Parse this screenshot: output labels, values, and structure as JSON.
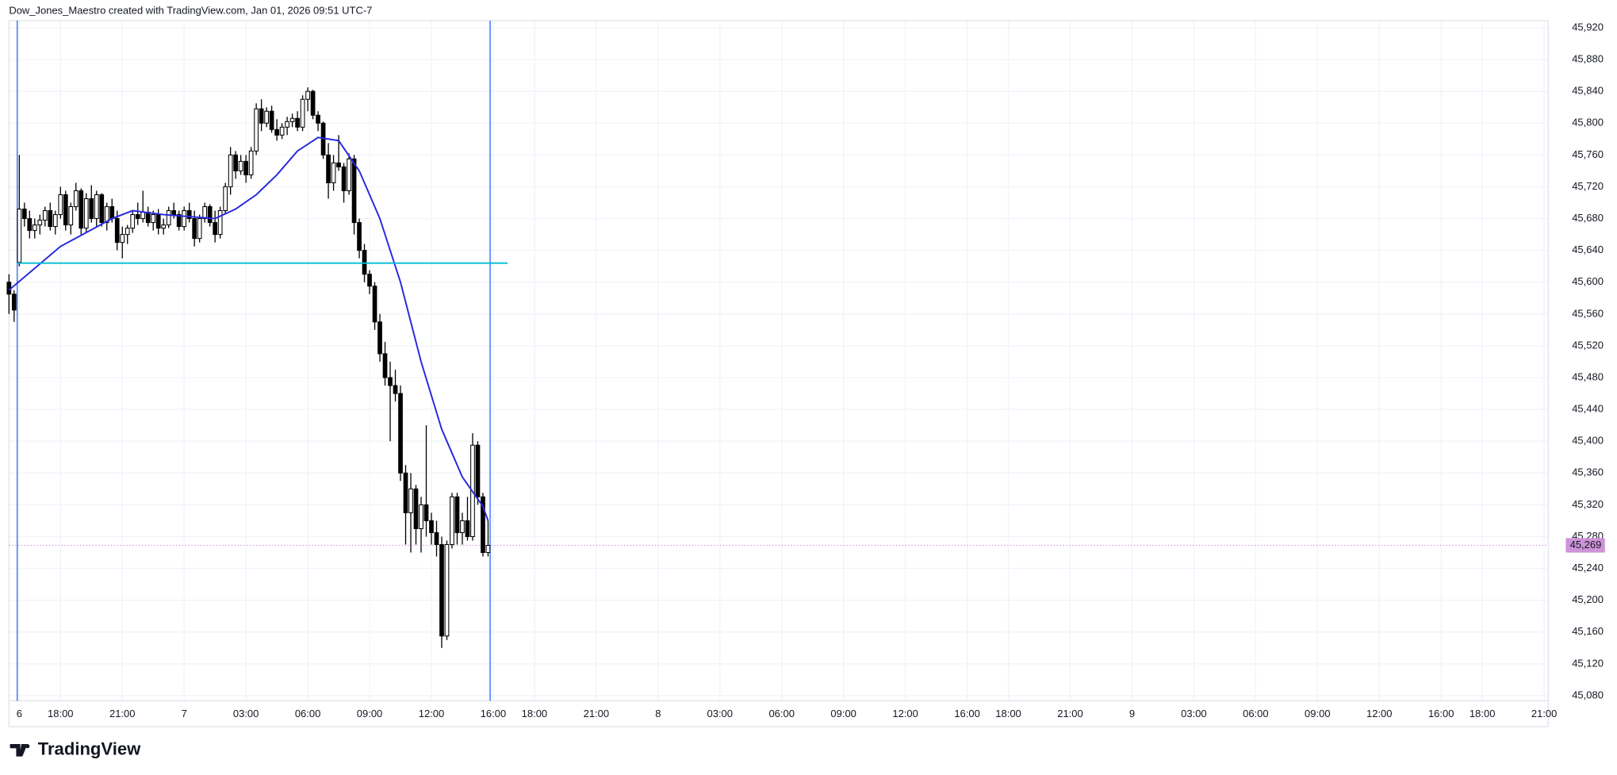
{
  "header": "Dow_Jones_Maestro created with TradingView.com, Jan 01, 2026 09:51 UTC-7",
  "footer": "TradingView",
  "chart_data": {
    "type": "candlestick",
    "open": [
      45600,
      45585,
      45625,
      45692,
      45680,
      45665,
      45672,
      45678,
      45690,
      45670,
      45685,
      45710,
      45672,
      45695,
      45715,
      45668,
      45705,
      45680,
      45710,
      45675,
      45695,
      45680,
      45650,
      45660,
      45668,
      45685,
      45680,
      45688,
      45675,
      45685,
      45668,
      45672,
      45690,
      45685,
      45670,
      45690,
      45680,
      45655,
      45680,
      45695,
      45675,
      45660,
      45690,
      45720,
      45760,
      45740,
      45752,
      45735,
      45765,
      45818,
      45800,
      45815,
      45792,
      45785,
      45795,
      45802,
      45806,
      45795,
      45830,
      45840,
      45810,
      45800,
      45760,
      45725,
      45750,
      45745,
      45715,
      45755,
      45675,
      45640,
      45610,
      45595,
      45550,
      45510,
      45480,
      45470,
      45460,
      45360,
      45310,
      45340,
      45290,
      45320,
      45300,
      45285,
      45270,
      45155,
      45270,
      45330,
      45285,
      45300,
      45280,
      45395,
      45330,
      45260
    ],
    "high": [
      45610,
      45590,
      45760,
      45700,
      45690,
      45680,
      45685,
      45695,
      45700,
      45690,
      45720,
      45715,
      45700,
      45725,
      45718,
      45712,
      45722,
      45715,
      45712,
      45700,
      45705,
      45690,
      45670,
      45672,
      45690,
      45700,
      45715,
      45695,
      45690,
      45692,
      45680,
      45695,
      45700,
      45690,
      45695,
      45700,
      45690,
      45685,
      45700,
      45698,
      45690,
      45695,
      45725,
      45770,
      45765,
      45760,
      45760,
      45770,
      45825,
      45830,
      45820,
      45822,
      45805,
      45800,
      45808,
      45812,
      45815,
      45835,
      45845,
      45842,
      45815,
      45802,
      45775,
      45760,
      45785,
      45750,
      45762,
      45760,
      45680,
      45648,
      45615,
      45600,
      45560,
      45525,
      45500,
      45490,
      45470,
      45370,
      45360,
      45345,
      45330,
      45420,
      45310,
      45300,
      45280,
      45275,
      45335,
      45335,
      45310,
      45330,
      45410,
      45400,
      45335,
      45300
    ],
    "low": [
      45560,
      45550,
      45620,
      45670,
      45655,
      45655,
      45660,
      45670,
      45665,
      45660,
      45680,
      45665,
      45660,
      45690,
      45660,
      45662,
      45675,
      45670,
      45670,
      45665,
      45675,
      45640,
      45630,
      45648,
      45662,
      45672,
      45675,
      45670,
      45665,
      45660,
      45660,
      45668,
      45680,
      45665,
      45665,
      45675,
      45645,
      45650,
      45675,
      45670,
      45650,
      45655,
      45685,
      45710,
      45730,
      45735,
      45725,
      45730,
      45760,
      45790,
      45795,
      45788,
      45778,
      45780,
      45785,
      45795,
      45790,
      45790,
      45815,
      45805,
      45790,
      45755,
      45705,
      45715,
      45740,
      45700,
      45710,
      45660,
      45630,
      45600,
      45585,
      45540,
      45500,
      45470,
      45400,
      45450,
      45350,
      45270,
      45260,
      45270,
      45260,
      45280,
      45270,
      45255,
      45140,
      45150,
      45265,
      45270,
      45270,
      45275,
      45275,
      45320,
      45255,
      45255
    ],
    "close": [
      45585,
      45565,
      45692,
      45680,
      45665,
      45672,
      45678,
      45690,
      45670,
      45685,
      45710,
      45672,
      45695,
      45715,
      45668,
      45705,
      45680,
      45710,
      45675,
      45695,
      45680,
      45650,
      45660,
      45668,
      45685,
      45680,
      45688,
      45675,
      45685,
      45668,
      45672,
      45690,
      45685,
      45670,
      45690,
      45680,
      45655,
      45680,
      45695,
      45675,
      45660,
      45690,
      45720,
      45760,
      45740,
      45752,
      45735,
      45765,
      45818,
      45800,
      45815,
      45792,
      45785,
      45795,
      45802,
      45806,
      45795,
      45830,
      45840,
      45810,
      45800,
      45760,
      45725,
      45750,
      45745,
      45715,
      45755,
      45675,
      45640,
      45610,
      45595,
      45550,
      45510,
      45480,
      45470,
      45460,
      45360,
      45310,
      45340,
      45290,
      45320,
      45300,
      45285,
      45270,
      45155,
      45270,
      45330,
      45285,
      45300,
      45280,
      45395,
      45330,
      45260,
      45269
    ],
    "up_color": "#ffffff",
    "down_color": "#000000",
    "wick_color": "#000000",
    "moving_average": {
      "color": "#2727e0",
      "x": [
        0,
        10,
        20,
        24,
        30,
        36,
        40,
        44,
        48,
        52,
        56,
        60,
        64,
        68,
        72,
        76,
        80,
        84,
        88,
        92,
        93
      ],
      "values": [
        45590,
        45645,
        45680,
        45690,
        45685,
        45682,
        45680,
        45692,
        45710,
        45735,
        45765,
        45782,
        45778,
        45740,
        45680,
        45600,
        45500,
        45415,
        45355,
        45318,
        45300
      ]
    },
    "horizontal_line": {
      "value": 45624,
      "x_range": [
        1.6,
        96.8
      ],
      "color": "#00bcd4"
    },
    "vertical_lines": {
      "x": [
        1.6,
        93.4
      ],
      "color": "#2962ff"
    },
    "last_price": {
      "value": 45269,
      "label": "45,269",
      "color": "#ce93d8"
    },
    "xlim": [
      0,
      298.8
    ],
    "ylim": [
      45073.5,
      45929
    ],
    "grid": true,
    "xticks": [
      {
        "value": 2,
        "label": "6"
      },
      {
        "value": 10,
        "label": "18:00"
      },
      {
        "value": 22,
        "label": "21:00"
      },
      {
        "value": 34,
        "label": "7"
      },
      {
        "value": 46,
        "label": "03:00"
      },
      {
        "value": 58,
        "label": "06:00"
      },
      {
        "value": 70,
        "label": "09:00"
      },
      {
        "value": 82,
        "label": "12:00"
      },
      {
        "value": 94,
        "label": "16:00"
      },
      {
        "value": 102,
        "label": "18:00"
      },
      {
        "value": 114,
        "label": "21:00"
      },
      {
        "value": 126,
        "label": "8"
      },
      {
        "value": 138,
        "label": "03:00"
      },
      {
        "value": 150,
        "label": "06:00"
      },
      {
        "value": 162,
        "label": "09:00"
      },
      {
        "value": 174,
        "label": "12:00"
      },
      {
        "value": 186,
        "label": "16:00"
      },
      {
        "value": 194,
        "label": "18:00"
      },
      {
        "value": 206,
        "label": "21:00"
      },
      {
        "value": 218,
        "label": "9"
      },
      {
        "value": 230,
        "label": "03:00"
      },
      {
        "value": 242,
        "label": "06:00"
      },
      {
        "value": 254,
        "label": "09:00"
      },
      {
        "value": 266,
        "label": "12:00"
      },
      {
        "value": 278,
        "label": "16:00"
      },
      {
        "value": 286,
        "label": "18:00"
      },
      {
        "value": 298,
        "label": "21:00"
      }
    ],
    "yticks": [
      {
        "value": 45080,
        "label": "45,080"
      },
      {
        "value": 45120,
        "label": "45,120"
      },
      {
        "value": 45160,
        "label": "45,160"
      },
      {
        "value": 45200,
        "label": "45,200"
      },
      {
        "value": 45240,
        "label": "45,240"
      },
      {
        "value": 45280,
        "label": "45,280"
      },
      {
        "value": 45320,
        "label": "45,320"
      },
      {
        "value": 45360,
        "label": "45,360"
      },
      {
        "value": 45400,
        "label": "45,400"
      },
      {
        "value": 45440,
        "label": "45,440"
      },
      {
        "value": 45480,
        "label": "45,480"
      },
      {
        "value": 45520,
        "label": "45,520"
      },
      {
        "value": 45560,
        "label": "45,560"
      },
      {
        "value": 45600,
        "label": "45,600"
      },
      {
        "value": 45640,
        "label": "45,640"
      },
      {
        "value": 45680,
        "label": "45,680"
      },
      {
        "value": 45720,
        "label": "45,720"
      },
      {
        "value": 45760,
        "label": "45,760"
      },
      {
        "value": 45800,
        "label": "45,800"
      },
      {
        "value": 45840,
        "label": "45,840"
      },
      {
        "value": 45880,
        "label": "45,880"
      },
      {
        "value": 45920,
        "label": "45,920"
      }
    ]
  }
}
